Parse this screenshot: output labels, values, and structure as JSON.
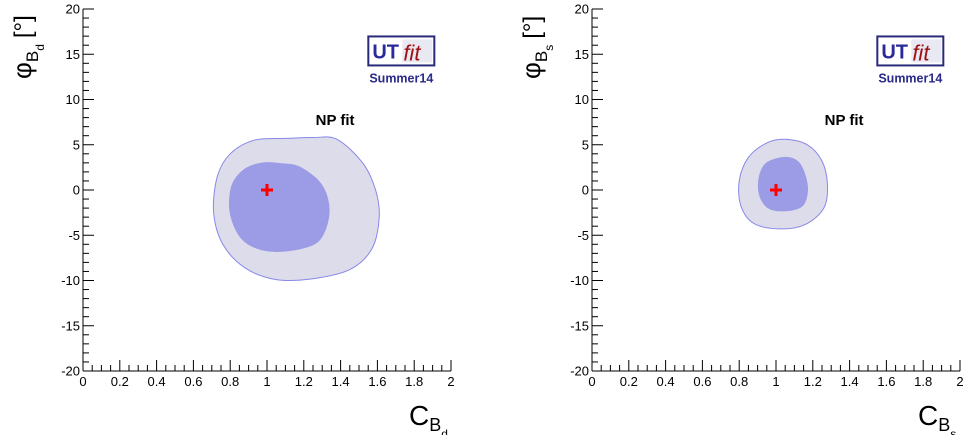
{
  "chart_data": [
    {
      "type": "contour",
      "xlim": [
        0,
        2
      ],
      "ylim": [
        -20,
        20
      ],
      "x_ticks": [
        "0",
        "0.2",
        "0.4",
        "0.6",
        "0.8",
        "1",
        "1.2",
        "1.4",
        "1.6",
        "1.8",
        "2"
      ],
      "y_ticks": [
        "20",
        "15",
        "10",
        "5",
        "0",
        "-5",
        "-10",
        "-15",
        "-20"
      ],
      "xlabel": {
        "main": "C",
        "sub": "B",
        "subsub": "d"
      },
      "ylabel": {
        "main": "φ",
        "sub": "B",
        "subsub": "d",
        "unit": "[°]"
      },
      "logo": {
        "ut": "UT",
        "fit": "fit",
        "edition": "Summer14"
      },
      "annotation": "NP fit",
      "best_fit": {
        "x": 1.0,
        "y": 0.0,
        "color": "#ff0000"
      },
      "regions": [
        {
          "level": "outer",
          "color": "#dcdcea",
          "stroke": "#8888e8",
          "points": [
            [
              1.38,
              5.6
            ],
            [
              1.52,
              3.0
            ],
            [
              1.59,
              0.0
            ],
            [
              1.61,
              -3.0
            ],
            [
              1.57,
              -6.5
            ],
            [
              1.45,
              -8.8
            ],
            [
              1.25,
              -9.8
            ],
            [
              1.05,
              -9.9
            ],
            [
              0.88,
              -8.6
            ],
            [
              0.76,
              -6.0
            ],
            [
              0.71,
              -2.5
            ],
            [
              0.73,
              1.5
            ],
            [
              0.8,
              4.0
            ],
            [
              0.93,
              5.5
            ],
            [
              1.1,
              5.7
            ],
            [
              1.25,
              5.8
            ]
          ]
        },
        {
          "level": "inner",
          "color": "#9b9be6",
          "stroke": "#9b9be6",
          "points": [
            [
              1.17,
              2.6
            ],
            [
              1.28,
              1.0
            ],
            [
              1.33,
              -1.0
            ],
            [
              1.33,
              -3.5
            ],
            [
              1.27,
              -5.8
            ],
            [
              1.12,
              -6.7
            ],
            [
              0.97,
              -6.6
            ],
            [
              0.86,
              -5.3
            ],
            [
              0.8,
              -2.5
            ],
            [
              0.81,
              0.5
            ],
            [
              0.88,
              2.3
            ],
            [
              0.98,
              3.0
            ],
            [
              1.08,
              2.9
            ]
          ]
        }
      ]
    },
    {
      "type": "contour",
      "xlim": [
        0,
        2
      ],
      "ylim": [
        -20,
        20
      ],
      "x_ticks": [
        "0",
        "0.2",
        "0.4",
        "0.6",
        "0.8",
        "1",
        "1.2",
        "1.4",
        "1.6",
        "1.8",
        "2"
      ],
      "y_ticks": [
        "20",
        "15",
        "10",
        "5",
        "0",
        "-5",
        "-10",
        "-15",
        "-20"
      ],
      "xlabel": {
        "main": "C",
        "sub": "B",
        "subsub": "s"
      },
      "ylabel": {
        "main": "φ",
        "sub": "B",
        "subsub": "s",
        "unit": "[°]"
      },
      "logo": {
        "ut": "UT",
        "fit": "fit",
        "edition": "Summer14"
      },
      "annotation": "NP fit",
      "best_fit": {
        "x": 1.0,
        "y": 0.0,
        "color": "#ff0000"
      },
      "regions": [
        {
          "level": "outer",
          "color": "#dcdcea",
          "stroke": "#8888e8",
          "points": [
            [
              1.05,
              5.6
            ],
            [
              1.17,
              5.0
            ],
            [
              1.25,
              3.2
            ],
            [
              1.28,
              0.5
            ],
            [
              1.26,
              -2.0
            ],
            [
              1.16,
              -3.8
            ],
            [
              1.02,
              -4.3
            ],
            [
              0.88,
              -3.7
            ],
            [
              0.81,
              -1.8
            ],
            [
              0.8,
              1.0
            ],
            [
              0.85,
              3.6
            ],
            [
              0.95,
              5.2
            ]
          ]
        },
        {
          "level": "inner",
          "color": "#9b9be6",
          "stroke": "#9b9be6",
          "points": [
            [
              1.05,
              3.6
            ],
            [
              1.12,
              3.1
            ],
            [
              1.16,
              1.5
            ],
            [
              1.17,
              -0.3
            ],
            [
              1.14,
              -1.8
            ],
            [
              1.05,
              -2.3
            ],
            [
              0.96,
              -2.0
            ],
            [
              0.91,
              -0.5
            ],
            [
              0.91,
              1.5
            ],
            [
              0.95,
              3.0
            ]
          ]
        }
      ]
    }
  ]
}
